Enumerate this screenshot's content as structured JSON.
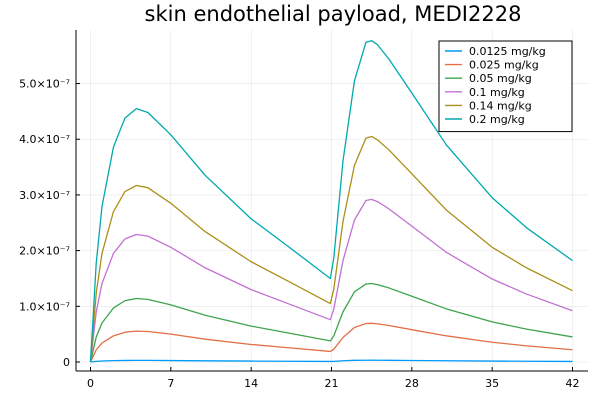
{
  "chart_data": {
    "type": "line",
    "title": "skin endothelial payload, MEDI2228",
    "xlabel": "",
    "ylabel": "",
    "xlim": [
      0,
      42
    ],
    "ylim": [
      0,
      5.8e-07
    ],
    "grid": true,
    "legend_position": "top-right",
    "x_ticks": [
      {
        "value": 0,
        "label": "0"
      },
      {
        "value": 7,
        "label": "7"
      },
      {
        "value": 14,
        "label": "14"
      },
      {
        "value": 21,
        "label": "21"
      },
      {
        "value": 28,
        "label": "28"
      },
      {
        "value": 35,
        "label": "35"
      },
      {
        "value": 42,
        "label": "42"
      }
    ],
    "y_ticks": [
      {
        "value": 0,
        "label": "0"
      },
      {
        "value": 1e-07,
        "label": "1.0×10⁻⁷"
      },
      {
        "value": 2e-07,
        "label": "2.0×10⁻⁷"
      },
      {
        "value": 3e-07,
        "label": "3.0×10⁻⁷"
      },
      {
        "value": 4e-07,
        "label": "4.0×10⁻⁷"
      },
      {
        "value": 5e-07,
        "label": "5.0×10⁻⁷"
      }
    ],
    "x": [
      0,
      0.5,
      1,
      2,
      3,
      4,
      5,
      7,
      10,
      14,
      17,
      20.9,
      21.2,
      22,
      23,
      24,
      24.5,
      25,
      26,
      28,
      31,
      35,
      38,
      42
    ],
    "series": [
      {
        "name": "0.0125 mg/kg",
        "color": "#009AFA",
        "values": [
          0,
          1.14e-09,
          1.75e-09,
          2.45e-09,
          2.8e-09,
          2.9e-09,
          2.85e-09,
          2.6e-09,
          2.15e-09,
          1.65e-09,
          1.35e-09,
          1e-09,
          1.17e-09,
          2.2e-09,
          3e-09,
          3.2e-09,
          3.22e-09,
          3.18e-09,
          3.05e-09,
          2.7e-09,
          2.2e-09,
          1.65e-09,
          1.35e-09,
          1e-09
        ]
      },
      {
        "name": "0.025 mg/kg",
        "color": "#E36F47",
        "values": [
          0,
          2.2e-08,
          3.4e-08,
          4.7e-08,
          5.35e-08,
          5.55e-08,
          5.48e-08,
          5e-08,
          4.1e-08,
          3.15e-08,
          2.6e-08,
          1.9e-08,
          2.3e-08,
          4.4e-08,
          6.2e-08,
          6.9e-08,
          6.95e-08,
          6.85e-08,
          6.55e-08,
          5.8e-08,
          4.7e-08,
          3.55e-08,
          2.9e-08,
          2.2e-08
        ]
      },
      {
        "name": "0.05 mg/kg",
        "color": "#3EA44E",
        "values": [
          0,
          4.5e-08,
          7e-08,
          9.7e-08,
          1.1e-07,
          1.14e-07,
          1.125e-07,
          1.025e-07,
          8.4e-08,
          6.45e-08,
          5.3e-08,
          3.8e-08,
          4.7e-08,
          9e-08,
          1.26e-07,
          1.4e-07,
          1.41e-07,
          1.39e-07,
          1.33e-07,
          1.18e-07,
          9.55e-08,
          7.2e-08,
          5.9e-08,
          4.5e-08
        ]
      },
      {
        "name": "0.1 mg/kg",
        "color": "#C271D2",
        "values": [
          0,
          9e-08,
          1.41e-07,
          1.95e-07,
          2.21e-07,
          2.29e-07,
          2.26e-07,
          2.06e-07,
          1.69e-07,
          1.3e-07,
          1.065e-07,
          7.6e-08,
          9.5e-08,
          1.82e-07,
          2.55e-07,
          2.9e-07,
          2.92e-07,
          2.88e-07,
          2.75e-07,
          2.44e-07,
          1.97e-07,
          1.49e-07,
          1.22e-07,
          9.2e-08
        ]
      },
      {
        "name": "0.14 mg/kg",
        "color": "#AC8E18",
        "values": [
          0,
          1.24e-07,
          1.95e-07,
          2.7e-07,
          3.06e-07,
          3.17e-07,
          3.13e-07,
          2.85e-07,
          2.34e-07,
          1.8e-07,
          1.475e-07,
          1.05e-07,
          1.31e-07,
          2.52e-07,
          3.53e-07,
          4.02e-07,
          4.05e-07,
          3.99e-07,
          3.81e-07,
          3.38e-07,
          2.73e-07,
          2.06e-07,
          1.69e-07,
          1.28e-07
        ]
      },
      {
        "name": "0.2 mg/kg",
        "color": "#00A9AD",
        "values": [
          0,
          1.78e-07,
          2.79e-07,
          3.86e-07,
          4.38e-07,
          4.55e-07,
          4.48e-07,
          4.08e-07,
          3.35e-07,
          2.57e-07,
          2.11e-07,
          1.5e-07,
          1.87e-07,
          3.61e-07,
          5.05e-07,
          5.74e-07,
          5.77e-07,
          5.7e-07,
          5.44e-07,
          4.83e-07,
          3.9e-07,
          2.95e-07,
          2.41e-07,
          1.82e-07
        ]
      }
    ]
  }
}
